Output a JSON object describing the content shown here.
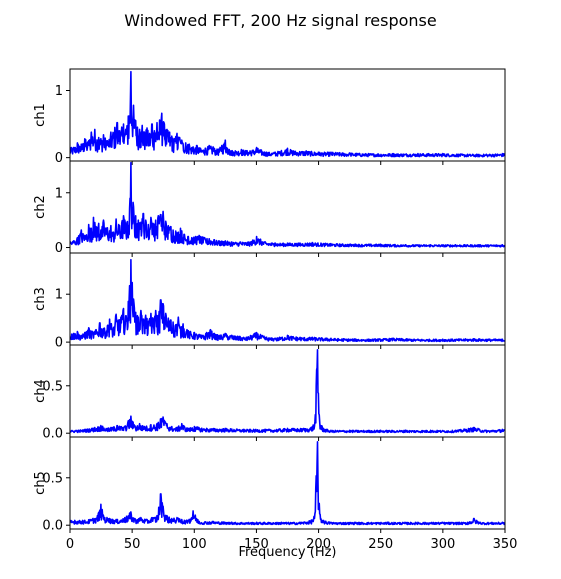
{
  "chart_data": {
    "type": "line",
    "title": "Windowed FFT, 200 Hz signal response",
    "xlabel": "Frequency (Hz)",
    "xlim": [
      0,
      350
    ],
    "xticks": [
      0,
      50,
      100,
      150,
      200,
      250,
      300,
      350
    ],
    "xtick_labels": [
      "0",
      "50",
      "100",
      "150",
      "200",
      "250",
      "300",
      "350"
    ],
    "line_color": "#0000ff",
    "grid": false,
    "legend": "none",
    "panels": [
      {
        "ylabel": "ch1",
        "ylim": [
          -0.05,
          1.32
        ],
        "yticks": [
          0,
          1
        ],
        "ytick_labels": [
          "0",
          "1"
        ],
        "peaks": [
          [
            3,
            0.15
          ],
          [
            6,
            0.22
          ],
          [
            9,
            0.2
          ],
          [
            12,
            0.28
          ],
          [
            15,
            0.25
          ],
          [
            17,
            0.38
          ],
          [
            20,
            0.42
          ],
          [
            23,
            0.3
          ],
          [
            27,
            0.34
          ],
          [
            30,
            0.25
          ],
          [
            33,
            0.38
          ],
          [
            36,
            0.45
          ],
          [
            38,
            0.52
          ],
          [
            40,
            0.4
          ],
          [
            43,
            0.5
          ],
          [
            45,
            0.42
          ],
          [
            47,
            0.62
          ],
          [
            49,
            1.28
          ],
          [
            51,
            0.78
          ],
          [
            53,
            0.55
          ],
          [
            56,
            0.42
          ],
          [
            58,
            0.48
          ],
          [
            60,
            0.38
          ],
          [
            62,
            0.44
          ],
          [
            64,
            0.36
          ],
          [
            66,
            0.5
          ],
          [
            68,
            0.4
          ],
          [
            70,
            0.52
          ],
          [
            72,
            0.56
          ],
          [
            74,
            0.66
          ],
          [
            76,
            0.5
          ],
          [
            78,
            0.42
          ],
          [
            80,
            0.38
          ],
          [
            82,
            0.32
          ],
          [
            84,
            0.28
          ],
          [
            86,
            0.36
          ],
          [
            88,
            0.3
          ],
          [
            90,
            0.26
          ],
          [
            93,
            0.22
          ],
          [
            96,
            0.2
          ],
          [
            99,
            0.16
          ],
          [
            102,
            0.18
          ],
          [
            105,
            0.14
          ],
          [
            109,
            0.14
          ],
          [
            112,
            0.18
          ],
          [
            115,
            0.16
          ],
          [
            119,
            0.12
          ],
          [
            122,
            0.18
          ],
          [
            125,
            0.26
          ],
          [
            128,
            0.12
          ],
          [
            133,
            0.1
          ],
          [
            138,
            0.12
          ],
          [
            145,
            0.1
          ],
          [
            150,
            0.15
          ],
          [
            158,
            0.08
          ],
          [
            165,
            0.08
          ],
          [
            175,
            0.14
          ],
          [
            180,
            0.1
          ],
          [
            190,
            0.1
          ],
          [
            200,
            0.08
          ],
          [
            210,
            0.08
          ],
          [
            225,
            0.07
          ],
          [
            240,
            0.06
          ],
          [
            260,
            0.06
          ],
          [
            280,
            0.06
          ],
          [
            300,
            0.06
          ],
          [
            320,
            0.05
          ],
          [
            335,
            0.05
          ],
          [
            348,
            0.06
          ]
        ]
      },
      {
        "ylabel": "ch2",
        "ylim": [
          -0.1,
          1.58
        ],
        "yticks": [
          0,
          1
        ],
        "ytick_labels": [
          "0",
          "1"
        ],
        "peaks": [
          [
            3,
            0.12
          ],
          [
            6,
            0.18
          ],
          [
            9,
            0.32
          ],
          [
            12,
            0.22
          ],
          [
            15,
            0.42
          ],
          [
            17,
            0.35
          ],
          [
            19,
            0.55
          ],
          [
            21,
            0.38
          ],
          [
            23,
            0.44
          ],
          [
            25,
            0.32
          ],
          [
            27,
            0.5
          ],
          [
            30,
            0.36
          ],
          [
            33,
            0.4
          ],
          [
            35,
            0.28
          ],
          [
            37,
            0.52
          ],
          [
            40,
            0.4
          ],
          [
            43,
            0.58
          ],
          [
            46,
            0.46
          ],
          [
            48,
            0.72
          ],
          [
            49,
            1.55
          ],
          [
            51,
            0.75
          ],
          [
            53,
            0.58
          ],
          [
            55,
            0.5
          ],
          [
            57,
            0.46
          ],
          [
            59,
            0.62
          ],
          [
            61,
            0.5
          ],
          [
            63,
            0.42
          ],
          [
            65,
            0.55
          ],
          [
            67,
            0.44
          ],
          [
            69,
            0.5
          ],
          [
            71,
            0.58
          ],
          [
            73,
            0.6
          ],
          [
            75,
            0.66
          ],
          [
            77,
            0.48
          ],
          [
            79,
            0.4
          ],
          [
            81,
            0.38
          ],
          [
            83,
            0.32
          ],
          [
            85,
            0.3
          ],
          [
            87,
            0.28
          ],
          [
            89,
            0.35
          ],
          [
            92,
            0.24
          ],
          [
            95,
            0.2
          ],
          [
            98,
            0.18
          ],
          [
            101,
            0.2
          ],
          [
            104,
            0.22
          ],
          [
            108,
            0.18
          ],
          [
            112,
            0.16
          ],
          [
            116,
            0.14
          ],
          [
            120,
            0.12
          ],
          [
            125,
            0.12
          ],
          [
            130,
            0.1
          ],
          [
            137,
            0.1
          ],
          [
            145,
            0.1
          ],
          [
            150,
            0.2
          ],
          [
            157,
            0.1
          ],
          [
            165,
            0.08
          ],
          [
            175,
            0.08
          ],
          [
            185,
            0.08
          ],
          [
            195,
            0.09
          ],
          [
            210,
            0.07
          ],
          [
            230,
            0.06
          ],
          [
            250,
            0.06
          ],
          [
            270,
            0.05
          ],
          [
            290,
            0.05
          ],
          [
            310,
            0.05
          ],
          [
            330,
            0.05
          ],
          [
            348,
            0.05
          ]
        ]
      },
      {
        "ylabel": "ch3",
        "ylim": [
          -0.06,
          1.86
        ],
        "yticks": [
          0,
          1
        ],
        "ytick_labels": [
          "0",
          "1"
        ],
        "peaks": [
          [
            3,
            0.18
          ],
          [
            6,
            0.22
          ],
          [
            9,
            0.14
          ],
          [
            12,
            0.2
          ],
          [
            15,
            0.3
          ],
          [
            18,
            0.22
          ],
          [
            21,
            0.26
          ],
          [
            24,
            0.4
          ],
          [
            27,
            0.28
          ],
          [
            30,
            0.34
          ],
          [
            32,
            0.48
          ],
          [
            35,
            0.3
          ],
          [
            37,
            0.58
          ],
          [
            39,
            0.46
          ],
          [
            41,
            0.52
          ],
          [
            43,
            0.7
          ],
          [
            45,
            0.55
          ],
          [
            47,
            0.85
          ],
          [
            49,
            1.72
          ],
          [
            51,
            0.9
          ],
          [
            53,
            0.62
          ],
          [
            55,
            0.52
          ],
          [
            57,
            0.66
          ],
          [
            59,
            0.48
          ],
          [
            61,
            0.56
          ],
          [
            63,
            0.42
          ],
          [
            65,
            0.6
          ],
          [
            67,
            0.5
          ],
          [
            69,
            0.66
          ],
          [
            71,
            0.55
          ],
          [
            73,
            0.88
          ],
          [
            75,
            0.8
          ],
          [
            77,
            0.6
          ],
          [
            79,
            0.5
          ],
          [
            81,
            0.46
          ],
          [
            83,
            0.42
          ],
          [
            85,
            0.36
          ],
          [
            87,
            0.52
          ],
          [
            89,
            0.3
          ],
          [
            91,
            0.38
          ],
          [
            94,
            0.26
          ],
          [
            97,
            0.22
          ],
          [
            100,
            0.2
          ],
          [
            104,
            0.16
          ],
          [
            107,
            0.14
          ],
          [
            110,
            0.2
          ],
          [
            113,
            0.26
          ],
          [
            116,
            0.18
          ],
          [
            120,
            0.14
          ],
          [
            125,
            0.18
          ],
          [
            130,
            0.14
          ],
          [
            136,
            0.12
          ],
          [
            142,
            0.1
          ],
          [
            150,
            0.2
          ],
          [
            158,
            0.1
          ],
          [
            165,
            0.08
          ],
          [
            175,
            0.14
          ],
          [
            185,
            0.1
          ],
          [
            195,
            0.1
          ],
          [
            210,
            0.08
          ],
          [
            220,
            0.07
          ],
          [
            240,
            0.06
          ],
          [
            260,
            0.08
          ],
          [
            280,
            0.06
          ],
          [
            300,
            0.06
          ],
          [
            325,
            0.07
          ],
          [
            348,
            0.06
          ]
        ]
      },
      {
        "ylabel": "ch4",
        "ylim": [
          -0.04,
          0.93
        ],
        "yticks": [
          0,
          0.5
        ],
        "ytick_labels": [
          "0.0",
          "0.5"
        ],
        "peaks": [
          [
            5,
            0.03
          ],
          [
            12,
            0.04
          ],
          [
            20,
            0.06
          ],
          [
            25,
            0.08
          ],
          [
            30,
            0.05
          ],
          [
            38,
            0.08
          ],
          [
            44,
            0.07
          ],
          [
            49,
            0.18
          ],
          [
            52,
            0.08
          ],
          [
            56,
            0.1
          ],
          [
            60,
            0.07
          ],
          [
            65,
            0.09
          ],
          [
            70,
            0.1
          ],
          [
            73,
            0.15
          ],
          [
            75,
            0.17
          ],
          [
            78,
            0.1
          ],
          [
            82,
            0.07
          ],
          [
            86,
            0.06
          ],
          [
            90,
            0.1
          ],
          [
            95,
            0.05
          ],
          [
            100,
            0.07
          ],
          [
            110,
            0.05
          ],
          [
            125,
            0.05
          ],
          [
            140,
            0.04
          ],
          [
            160,
            0.04
          ],
          [
            175,
            0.05
          ],
          [
            188,
            0.05
          ],
          [
            194,
            0.06
          ],
          [
            197,
            0.12
          ],
          [
            199,
            0.88
          ],
          [
            201,
            0.12
          ],
          [
            204,
            0.05
          ],
          [
            210,
            0.03
          ],
          [
            225,
            0.03
          ],
          [
            250,
            0.03
          ],
          [
            270,
            0.03
          ],
          [
            290,
            0.03
          ],
          [
            310,
            0.03
          ],
          [
            325,
            0.06
          ],
          [
            335,
            0.03
          ],
          [
            348,
            0.04
          ]
        ]
      },
      {
        "ylabel": "ch5",
        "ylim": [
          -0.04,
          0.93
        ],
        "yticks": [
          0,
          0.5
        ],
        "ytick_labels": [
          "0.0",
          "0.5"
        ],
        "peaks": [
          [
            4,
            0.05
          ],
          [
            10,
            0.05
          ],
          [
            16,
            0.06
          ],
          [
            22,
            0.1
          ],
          [
            25,
            0.22
          ],
          [
            27,
            0.1
          ],
          [
            32,
            0.07
          ],
          [
            38,
            0.06
          ],
          [
            44,
            0.08
          ],
          [
            49,
            0.14
          ],
          [
            52,
            0.07
          ],
          [
            57,
            0.08
          ],
          [
            62,
            0.06
          ],
          [
            66,
            0.08
          ],
          [
            70,
            0.1
          ],
          [
            73,
            0.33
          ],
          [
            75,
            0.2
          ],
          [
            78,
            0.1
          ],
          [
            82,
            0.07
          ],
          [
            86,
            0.08
          ],
          [
            90,
            0.06
          ],
          [
            95,
            0.05
          ],
          [
            99,
            0.15
          ],
          [
            104,
            0.04
          ],
          [
            115,
            0.04
          ],
          [
            130,
            0.03
          ],
          [
            150,
            0.03
          ],
          [
            170,
            0.03
          ],
          [
            185,
            0.03
          ],
          [
            194,
            0.05
          ],
          [
            197,
            0.12
          ],
          [
            199,
            0.88
          ],
          [
            201,
            0.12
          ],
          [
            204,
            0.05
          ],
          [
            210,
            0.03
          ],
          [
            230,
            0.03
          ],
          [
            255,
            0.03
          ],
          [
            280,
            0.03
          ],
          [
            300,
            0.03
          ],
          [
            320,
            0.03
          ],
          [
            325,
            0.07
          ],
          [
            330,
            0.03
          ],
          [
            348,
            0.03
          ]
        ]
      }
    ]
  }
}
